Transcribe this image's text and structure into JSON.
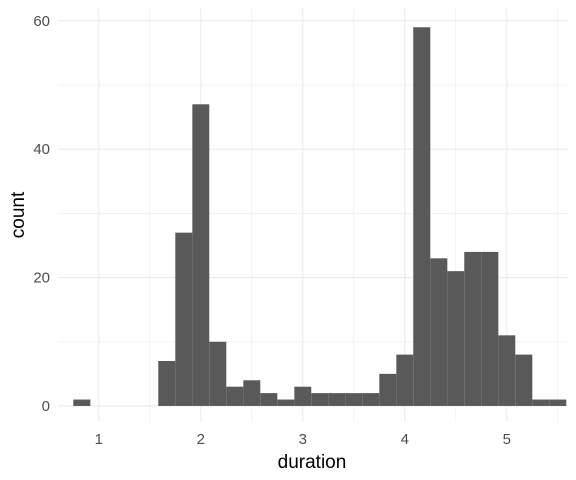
{
  "chart_data": {
    "type": "bar",
    "subtype": "histogram",
    "xlabel": "duration",
    "ylabel": "count",
    "xlim": [
      0.6,
      5.6
    ],
    "ylim": [
      -2.5,
      62
    ],
    "xticks": [
      1,
      2,
      3,
      4,
      5
    ],
    "yticks": [
      0,
      20,
      40,
      60
    ],
    "grid": true,
    "bin_width": 0.1667,
    "bins": [
      {
        "x0": 0.75,
        "x1": 0.917,
        "count": 1
      },
      {
        "x0": 0.917,
        "x1": 1.083,
        "count": 0
      },
      {
        "x0": 1.083,
        "x1": 1.25,
        "count": 0
      },
      {
        "x0": 1.25,
        "x1": 1.417,
        "count": 0
      },
      {
        "x0": 1.417,
        "x1": 1.583,
        "count": 0
      },
      {
        "x0": 1.583,
        "x1": 1.75,
        "count": 7
      },
      {
        "x0": 1.75,
        "x1": 1.917,
        "count": 27
      },
      {
        "x0": 1.917,
        "x1": 2.083,
        "count": 47
      },
      {
        "x0": 2.083,
        "x1": 2.25,
        "count": 10
      },
      {
        "x0": 2.25,
        "x1": 2.417,
        "count": 3
      },
      {
        "x0": 2.417,
        "x1": 2.583,
        "count": 4
      },
      {
        "x0": 2.583,
        "x1": 2.75,
        "count": 2
      },
      {
        "x0": 2.75,
        "x1": 2.917,
        "count": 1
      },
      {
        "x0": 2.917,
        "x1": 3.083,
        "count": 3
      },
      {
        "x0": 3.083,
        "x1": 3.25,
        "count": 2
      },
      {
        "x0": 3.25,
        "x1": 3.417,
        "count": 2
      },
      {
        "x0": 3.417,
        "x1": 3.583,
        "count": 2
      },
      {
        "x0": 3.583,
        "x1": 3.75,
        "count": 2
      },
      {
        "x0": 3.75,
        "x1": 3.917,
        "count": 5
      },
      {
        "x0": 3.917,
        "x1": 4.083,
        "count": 8
      },
      {
        "x0": 4.083,
        "x1": 4.25,
        "count": 59
      },
      {
        "x0": 4.25,
        "x1": 4.417,
        "count": 23
      },
      {
        "x0": 4.417,
        "x1": 4.583,
        "count": 21
      },
      {
        "x0": 4.583,
        "x1": 4.75,
        "count": 24
      },
      {
        "x0": 4.75,
        "x1": 4.917,
        "count": 24
      },
      {
        "x0": 4.917,
        "x1": 5.083,
        "count": 11
      },
      {
        "x0": 5.083,
        "x1": 5.25,
        "count": 8
      },
      {
        "x0": 5.25,
        "x1": 5.417,
        "count": 1
      },
      {
        "x0": 5.417,
        "x1": 5.583,
        "count": 1
      }
    ],
    "colors": {
      "bar": "#595959",
      "grid": "#ebebeb",
      "tick_text": "#4d4d4d",
      "title_text": "#000000",
      "background": "#ffffff"
    }
  }
}
